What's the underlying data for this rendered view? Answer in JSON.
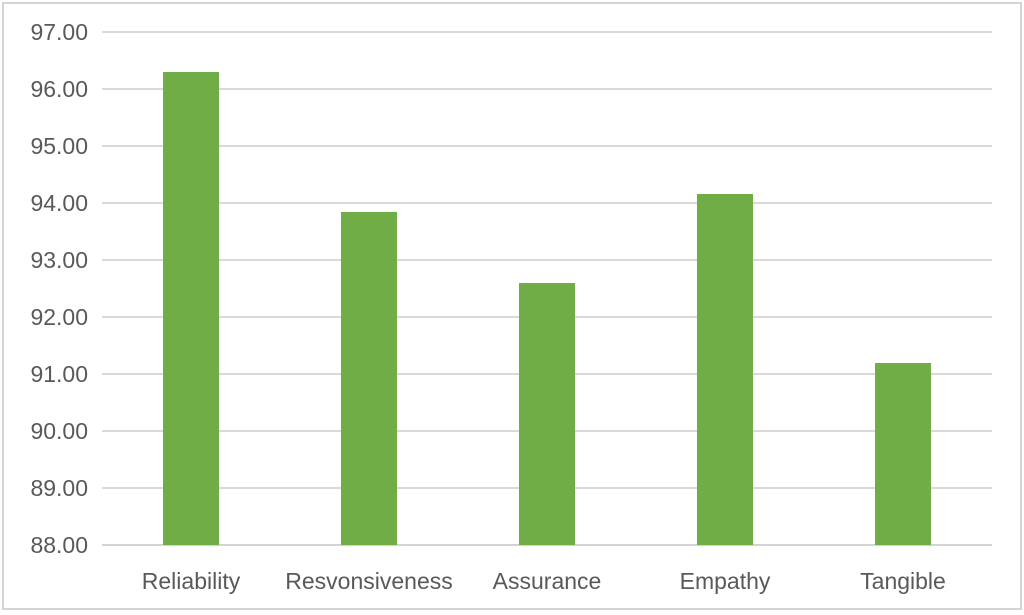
{
  "chart_data": {
    "type": "bar",
    "title": "",
    "xlabel": "",
    "ylabel": "",
    "categories": [
      "Reliability",
      "Resvonsiveness",
      "Assurance",
      "Empathy",
      "Tangible"
    ],
    "values": [
      96.3,
      93.85,
      92.6,
      94.15,
      91.2
    ],
    "ylim": [
      88,
      97
    ],
    "ytick_step": 1,
    "ytick_labels": [
      "97.00",
      "96.00",
      "95.00",
      "94.00",
      "93.00",
      "92.00",
      "91.00",
      "90.00",
      "89.00",
      "88.00"
    ],
    "grid": true,
    "legend": false,
    "bar_color": "#70AD47"
  },
  "colors": {
    "bar": "#70AD47",
    "gridline": "#d9d9d9",
    "axis_line": "#d3d3d3",
    "tick_text": "#595959",
    "frame_border": "#d4d4d4",
    "background": "#ffffff"
  }
}
